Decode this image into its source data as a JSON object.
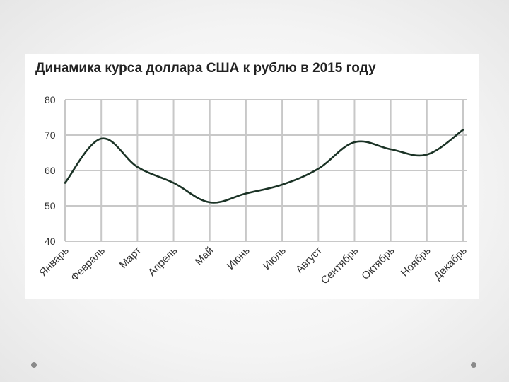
{
  "chart_data": {
    "type": "line",
    "title": "Динамика курса доллара США к рублю в 2015 году",
    "xlabel": "",
    "ylabel": "",
    "categories": [
      "Январь",
      "Февраль",
      "Март",
      "Апрель",
      "Май",
      "Июнь",
      "Июль",
      "Август",
      "Сентябрь",
      "Октябрь",
      "Ноябрь",
      "Декабрь"
    ],
    "values": [
      56.5,
      69,
      61,
      56.5,
      51,
      53.5,
      56,
      60.5,
      68,
      66,
      64.5,
      71.5
    ],
    "ylim": [
      40,
      80
    ],
    "yticks": [
      80,
      70,
      60,
      50,
      40
    ],
    "grid": true,
    "smooth": true,
    "line_color": "#1b3326"
  }
}
